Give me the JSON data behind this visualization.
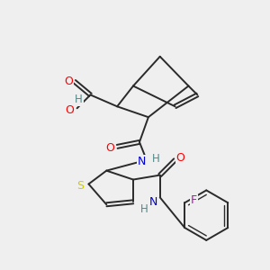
{
  "bg_color": "#efefef",
  "bond_color": "#2a2a2a",
  "atom_colors": {
    "O": "#ff0000",
    "N": "#0000cc",
    "S": "#cccc00",
    "F": "#cc00cc",
    "H": "#4a8a8a",
    "C": "#2a2a2a"
  },
  "figsize": [
    3.0,
    3.0
  ],
  "dpi": 100
}
